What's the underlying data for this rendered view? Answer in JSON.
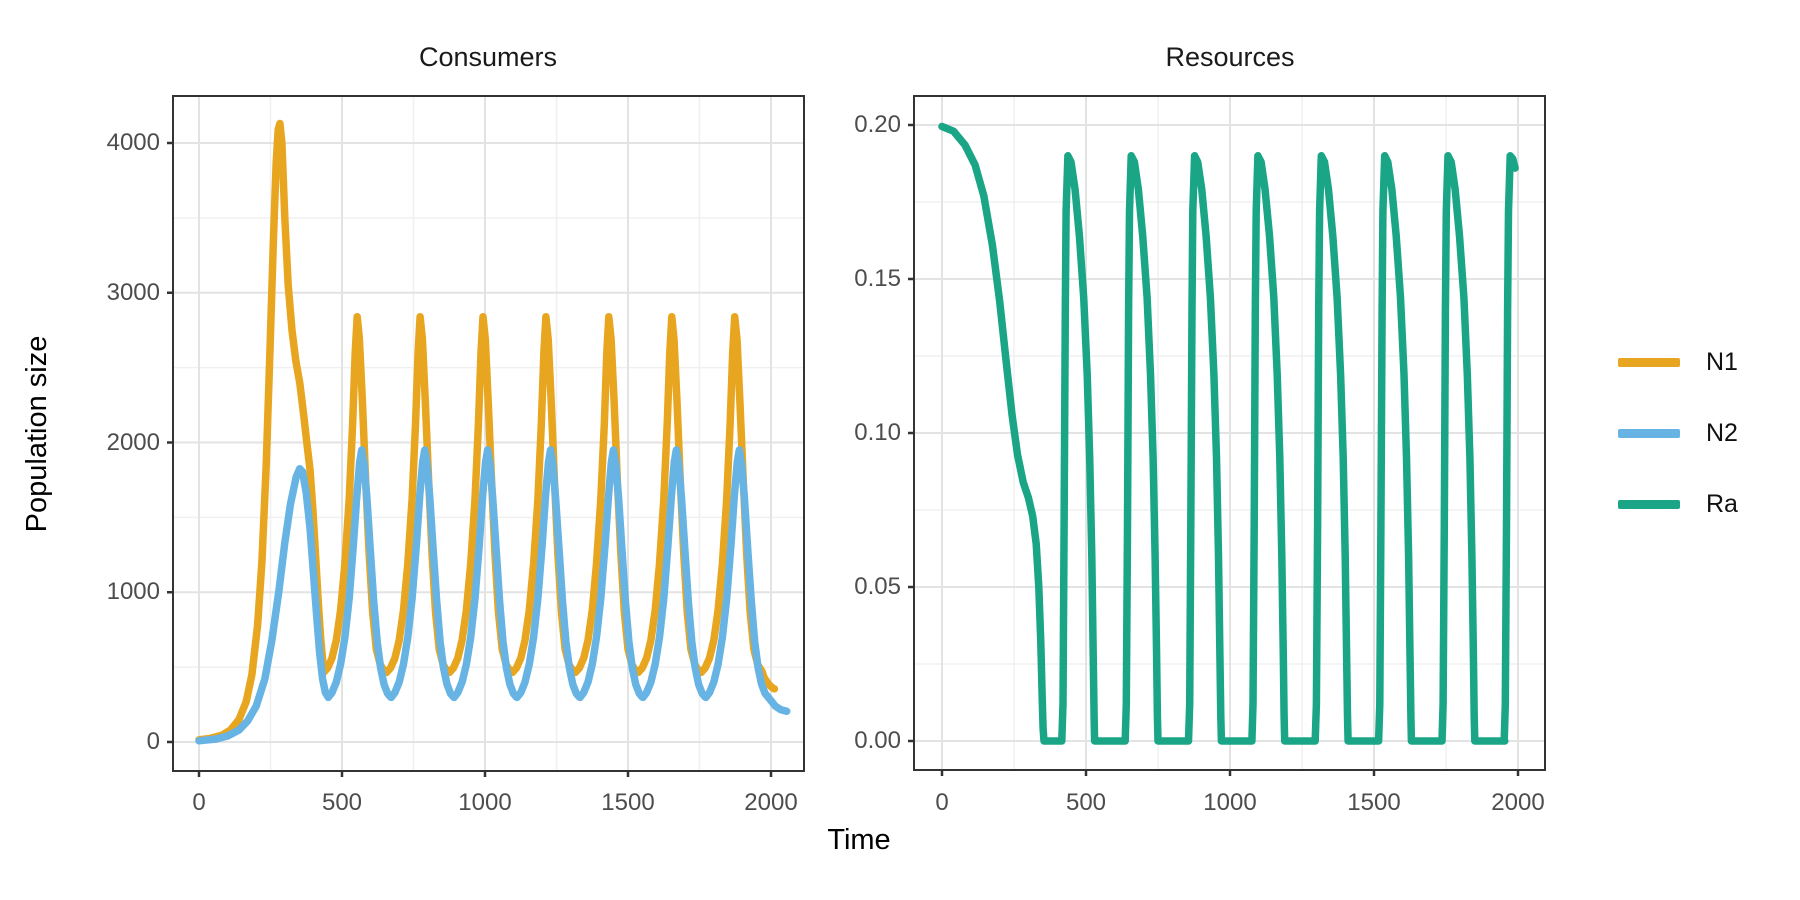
{
  "figure": {
    "background": "#ffffff",
    "panel_border_color": "#333333",
    "grid_major_color": "#e3e3e3",
    "grid_minor_color": "#f0f0f0",
    "tick_text_color": "#4d4d4d",
    "legend": {
      "position": "right",
      "entries": [
        {
          "label": "N1",
          "color": "#E8A51F"
        },
        {
          "label": "N2",
          "color": "#67B4E4"
        },
        {
          "label": "Ra",
          "color": "#1AA587"
        }
      ]
    }
  },
  "chart_data": [
    {
      "type": "line",
      "title": "Consumers",
      "xlabel": "Time",
      "ylabel": "Population size",
      "xlim": [
        0,
        2000
      ],
      "ylim": [
        0,
        4320
      ],
      "x_ticks": [
        0,
        500,
        1000,
        1500,
        2000
      ],
      "x_tick_labels": [
        "0",
        "500",
        "1000",
        "1500",
        "2000"
      ],
      "y_ticks": [
        0,
        1000,
        2000,
        3000,
        4000
      ],
      "y_tick_labels": [
        "0",
        "1000",
        "2000",
        "3000",
        "4000"
      ],
      "grid": "major+minor",
      "legend_position": "right",
      "series": [
        {
          "name": "N1",
          "color": "#E8A51F",
          "summary": "Consumer 1: grows from ~15, initial peak ~4130 at t~280, crashes to ~465 at t~436, then sustained oscillations of period ~220 with peaks ~2840 (t~553,773,993,1213,1433,1653,1873) and troughs ~465; ends ~355 at t~2010",
          "initial_points": [
            [
              0,
              15
            ],
            [
              40,
              25
            ],
            [
              80,
              45
            ],
            [
              110,
              80
            ],
            [
              140,
              150
            ],
            [
              165,
              270
            ],
            [
              185,
              450
            ],
            [
              205,
              780
            ],
            [
              220,
              1200
            ],
            [
              235,
              1850
            ],
            [
              248,
              2600
            ],
            [
              260,
              3350
            ],
            [
              270,
              3870
            ],
            [
              277,
              4090
            ],
            [
              283,
              4130
            ],
            [
              290,
              4000
            ],
            [
              300,
              3500
            ],
            [
              312,
              3050
            ],
            [
              325,
              2750
            ],
            [
              338,
              2550
            ],
            [
              352,
              2400
            ],
            [
              365,
              2200
            ],
            [
              377,
              2000
            ],
            [
              388,
              1820
            ],
            [
              398,
              1560
            ],
            [
              408,
              1230
            ],
            [
              417,
              930
            ],
            [
              425,
              700
            ],
            [
              432,
              550
            ]
          ],
          "cycle_period": 220,
          "cycle_repeats": 7,
          "cycle_points": [
            [
              436,
              465
            ],
            [
              450,
              495
            ],
            [
              465,
              560
            ],
            [
              480,
              680
            ],
            [
              495,
              880
            ],
            [
              510,
              1190
            ],
            [
              525,
              1620
            ],
            [
              537,
              2120
            ],
            [
              546,
              2600
            ],
            [
              553,
              2840
            ],
            [
              561,
              2690
            ],
            [
              571,
              2290
            ],
            [
              583,
              1740
            ],
            [
              595,
              1250
            ],
            [
              607,
              870
            ],
            [
              620,
              620
            ],
            [
              634,
              515
            ],
            [
              648,
              475
            ]
          ],
          "tail_points": [
            [
              1976,
              430
            ],
            [
              1990,
              390
            ],
            [
              2000,
              370
            ],
            [
              2008,
              358
            ],
            [
              2012,
              355
            ]
          ]
        },
        {
          "name": "N2",
          "color": "#67B4E4",
          "summary": "Consumer 2: grows from ~8, first peak ~1825 at t~352, then oscillations of period ~220 with peaks ~1950 (t~569,789,1009,1229,1449,1669,1889) and troughs ~300; ends ~205 descending at t~2055",
          "initial_points": [
            [
              0,
              8
            ],
            [
              60,
              20
            ],
            [
              100,
              40
            ],
            [
              140,
              80
            ],
            [
              170,
              140
            ],
            [
              200,
              240
            ],
            [
              230,
              420
            ],
            [
              255,
              680
            ],
            [
              280,
              1020
            ],
            [
              300,
              1330
            ],
            [
              320,
              1590
            ],
            [
              340,
              1770
            ],
            [
              352,
              1825
            ],
            [
              362,
              1805
            ],
            [
              375,
              1660
            ],
            [
              388,
              1430
            ],
            [
              400,
              1130
            ],
            [
              412,
              830
            ],
            [
              422,
              590
            ],
            [
              432,
              420
            ],
            [
              442,
              330
            ]
          ],
          "cycle_period": 220,
          "cycle_repeats": 7,
          "cycle_points": [
            [
              452,
              298
            ],
            [
              465,
              330
            ],
            [
              480,
              400
            ],
            [
              495,
              520
            ],
            [
              510,
              700
            ],
            [
              525,
              960
            ],
            [
              540,
              1320
            ],
            [
              552,
              1650
            ],
            [
              562,
              1870
            ],
            [
              569,
              1950
            ],
            [
              577,
              1860
            ],
            [
              587,
              1630
            ],
            [
              599,
              1280
            ],
            [
              611,
              940
            ],
            [
              623,
              670
            ],
            [
              635,
              495
            ],
            [
              647,
              385
            ],
            [
              659,
              325
            ],
            [
              669,
              302
            ]
          ],
          "tail_points": [
            [
              1996,
              285
            ],
            [
              2015,
              240
            ],
            [
              2035,
              215
            ],
            [
              2055,
              205
            ]
          ]
        }
      ]
    },
    {
      "type": "line",
      "title": "Resources",
      "xlabel": "Time",
      "ylabel": "",
      "xlim": [
        0,
        2000
      ],
      "ylim": [
        0,
        0.206
      ],
      "x_ticks": [
        0,
        500,
        1000,
        1500,
        2000
      ],
      "x_tick_labels": [
        "0",
        "500",
        "1000",
        "1500",
        "2000"
      ],
      "y_ticks": [
        0,
        0.05,
        0.1,
        0.15,
        0.2
      ],
      "y_tick_labels": [
        "0.00",
        "0.05",
        "0.10",
        "0.15",
        "0.20"
      ],
      "grid": "major+minor",
      "legend_position": "right",
      "series": [
        {
          "name": "Ra",
          "color": "#1AA587",
          "summary": "Resource: starts at 0.20, sigmoid decline with shoulder near 0.08 (t~280-310), reaches 0 at t~354, stays 0 until t~416, then sawtooth cycles of period ~220: sharp rise to peak 0.19 (t~437,657,877,1097,1317,1537,1757,1973), accelerating decay to 0 (~90 units), flat zero phase (~105 units); ends ~0.186 at t~1990",
          "initial_points": [
            [
              0,
              0.1995
            ],
            [
              40,
              0.198
            ],
            [
              80,
              0.1935
            ],
            [
              115,
              0.187
            ],
            [
              145,
              0.177
            ],
            [
              175,
              0.161
            ],
            [
              200,
              0.143
            ],
            [
              222,
              0.124
            ],
            [
              243,
              0.106
            ],
            [
              262,
              0.093
            ],
            [
              282,
              0.084
            ],
            [
              300,
              0.079
            ],
            [
              315,
              0.073
            ],
            [
              327,
              0.064
            ],
            [
              336,
              0.05
            ],
            [
              343,
              0.032
            ],
            [
              348,
              0.014
            ],
            [
              351,
              0.004
            ],
            [
              354,
              0
            ],
            [
              380,
              0
            ]
          ],
          "cycle_period": 220,
          "cycle_repeats": 7,
          "cycle_points": [
            [
              416,
              0
            ],
            [
              420,
              0.012
            ],
            [
              424,
              0.07
            ],
            [
              428,
              0.14
            ],
            [
              431,
              0.172
            ],
            [
              437,
              0.19
            ],
            [
              448,
              0.188
            ],
            [
              462,
              0.179
            ],
            [
              477,
              0.164
            ],
            [
              492,
              0.144
            ],
            [
              504,
              0.119
            ],
            [
              513,
              0.092
            ],
            [
              520,
              0.06
            ],
            [
              525,
              0.028
            ],
            [
              528,
              0.008
            ],
            [
              530,
              0
            ],
            [
              565,
              0
            ],
            [
              600,
              0
            ],
            [
              634,
              0
            ]
          ],
          "tail_points": [
            [
              1952,
              0
            ],
            [
              1956,
              0.012
            ],
            [
              1960,
              0.07
            ],
            [
              1964,
              0.14
            ],
            [
              1967,
              0.172
            ],
            [
              1973,
              0.19
            ],
            [
              1982,
              0.189
            ],
            [
              1990,
              0.186
            ]
          ]
        }
      ]
    }
  ]
}
